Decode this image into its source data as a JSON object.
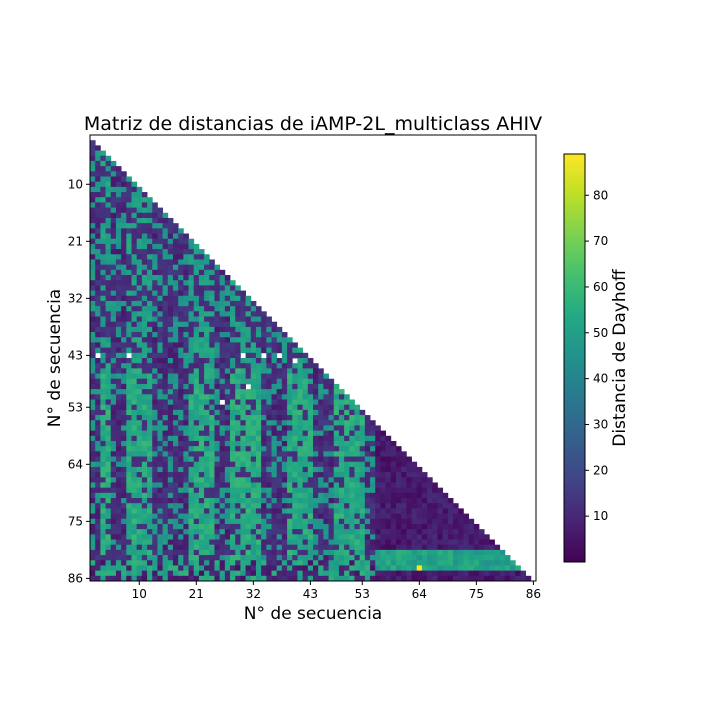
{
  "chart_data": {
    "type": "heatmap",
    "title": "Matriz de distancias de iAMP-2L_multiclass AHIV",
    "xlabel": "N° de secuencia",
    "ylabel": "N° de secuencia",
    "n": 86,
    "matrix_shape": "lower-triangular",
    "x_ticks": [
      "10",
      "21",
      "32",
      "43",
      "53",
      "64",
      "75",
      "86"
    ],
    "y_ticks": [
      "10",
      "21",
      "32",
      "43",
      "53",
      "64",
      "75",
      "86"
    ],
    "colorbar": {
      "label": "Distancia de Dayhoff",
      "colormap": "viridis",
      "min": 0,
      "max": 89,
      "ticks": [
        "10",
        "20",
        "30",
        "40",
        "50",
        "60",
        "70",
        "80"
      ]
    },
    "value_description": "Pairwise Dayhoff distances between sequences; column groups around 8–12, 20–24, 28–33, 39–44 and 48–53 show high distances (~50–60); columns beyond 55 mostly low (~2–10); one maximum cell (~89) near row 84, column 64."
  }
}
